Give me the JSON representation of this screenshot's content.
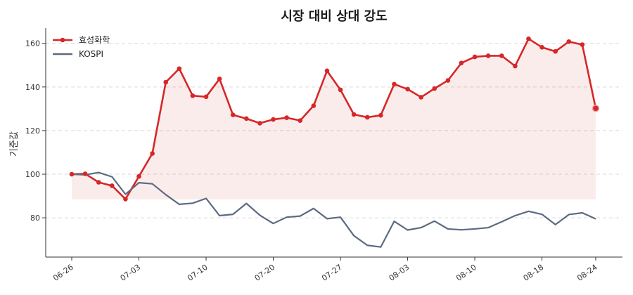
{
  "chart_data": {
    "type": "line",
    "title": "시장 대비 상대 강도",
    "xlabel": "",
    "ylabel": "기준값",
    "ylim": [
      62,
      167
    ],
    "yticks": [
      80,
      100,
      120,
      140,
      160
    ],
    "xtick_labels": [
      "06-26",
      "07-03",
      "07-10",
      "07-20",
      "07-27",
      "08-03",
      "08-10",
      "08-18",
      "08-24"
    ],
    "xtick_indices": [
      0,
      5,
      10,
      15,
      20,
      25,
      30,
      35,
      39
    ],
    "baseline": 88.5,
    "grid": "y-dashed",
    "legend_position": "top-left",
    "series": [
      {
        "name": "효성화학",
        "color": "#d62728",
        "markers": true,
        "fill": true,
        "values": [
          100,
          100.2,
          96.3,
          94.7,
          88.6,
          99.0,
          109.5,
          142.2,
          148.4,
          136.0,
          135.5,
          143.7,
          127.2,
          125.5,
          123.4,
          125.1,
          125.9,
          124.6,
          131.4,
          147.4,
          138.7,
          127.4,
          126.1,
          127.0,
          141.3,
          139.0,
          135.3,
          139.3,
          143.0,
          151.0,
          153.8,
          154.3,
          154.3,
          149.6,
          162.1,
          158.2,
          156.3,
          160.8,
          159.4,
          130.2
        ]
      },
      {
        "name": "KOSPI",
        "color": "#5c6b80",
        "markers": false,
        "fill": false,
        "values": [
          100,
          99.7,
          100.8,
          98.8,
          90.8,
          96.1,
          95.6,
          90.6,
          86.2,
          86.7,
          88.9,
          81.0,
          81.6,
          86.6,
          81.2,
          77.4,
          80.3,
          80.8,
          84.3,
          79.6,
          80.3,
          71.8,
          67.4,
          66.6,
          78.4,
          74.4,
          75.5,
          78.5,
          74.9,
          74.5,
          74.9,
          75.5,
          78.2,
          81.0,
          83.0,
          81.6,
          76.9,
          81.5,
          82.3,
          79.5
        ]
      }
    ]
  }
}
